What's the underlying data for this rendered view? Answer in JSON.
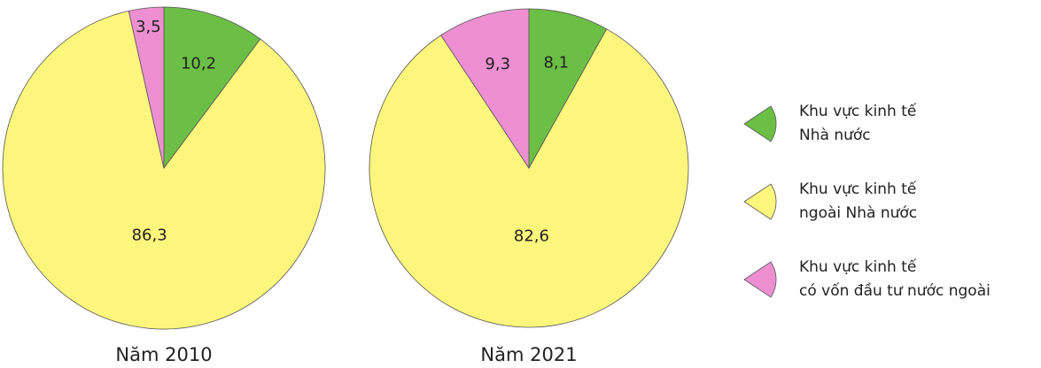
{
  "chart_data": [
    {
      "type": "pie",
      "title": "Năm 2010",
      "categories": [
        "Khu vực kinh tế\nNhà nước",
        "Khu vực kinh tế\nngoài Nhà nước",
        "Khu vực kinh tế\ncó vốn đầu tư nước ngoài"
      ],
      "values": [
        10.2,
        86.3,
        3.5
      ],
      "value_labels": [
        "10,2",
        "86,3",
        "3,5"
      ],
      "colors": [
        "#6cbf45",
        "#fdf67c",
        "#ee8fd2"
      ]
    },
    {
      "type": "pie",
      "title": "Năm 2021",
      "categories": [
        "Khu vực kinh tế\nNhà nước",
        "Khu vực kinh tế\nngoài Nhà nước",
        "Khu vực kinh tế\ncó vốn đầu tư nước ngoài"
      ],
      "values": [
        8.1,
        82.6,
        9.3
      ],
      "value_labels": [
        "8,1",
        "82,6",
        "9,3"
      ],
      "colors": [
        "#6cbf45",
        "#fdf67c",
        "#ee8fd2"
      ]
    }
  ]
}
